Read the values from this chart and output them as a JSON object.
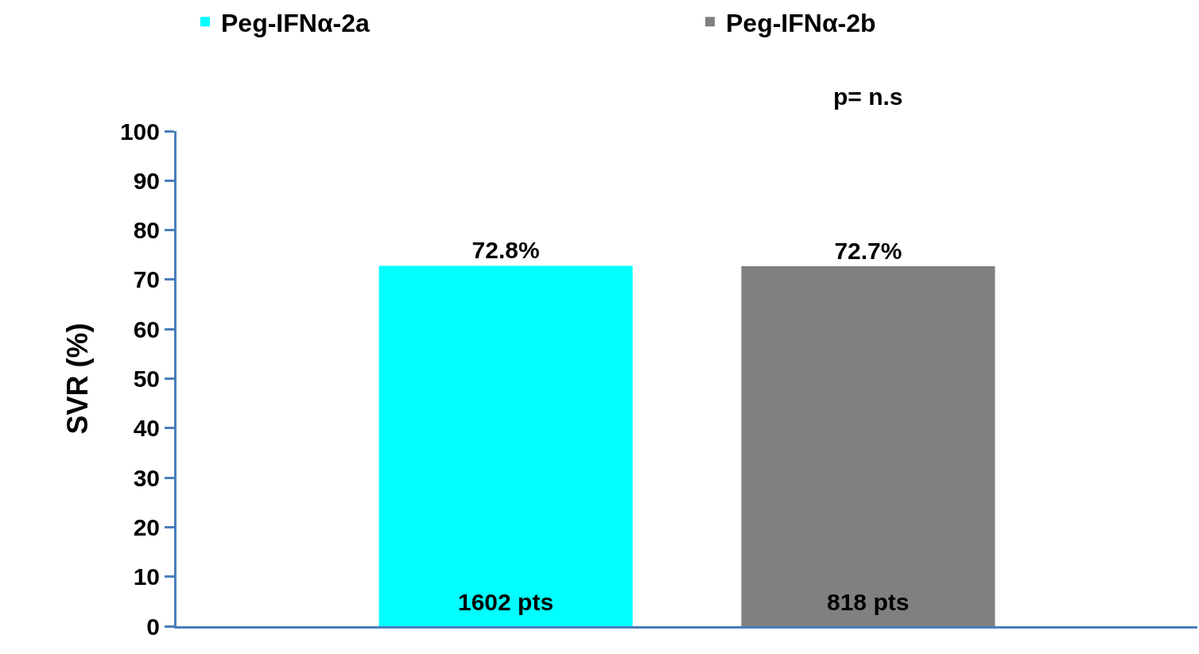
{
  "chart_data": {
    "type": "bar",
    "ylabel": "SVR (%)",
    "categories": [
      null
    ],
    "series": [
      {
        "name": "Peg-IFNα-2a",
        "color": "#00ffff",
        "values": [
          72.8
        ],
        "value_labels": [
          "72.8%"
        ]
      },
      {
        "name": "Peg-IFNα-2b",
        "color": "#808080",
        "values": [
          72.7
        ],
        "value_labels": [
          "72.7%"
        ]
      }
    ],
    "annotations": [
      "p= n.s",
      "1602 pts",
      "818 pts"
    ],
    "ylim": [
      0,
      100
    ],
    "yticks": [
      0,
      10,
      20,
      30,
      40,
      50,
      60,
      70,
      80,
      90,
      100
    ],
    "legend": "top"
  }
}
